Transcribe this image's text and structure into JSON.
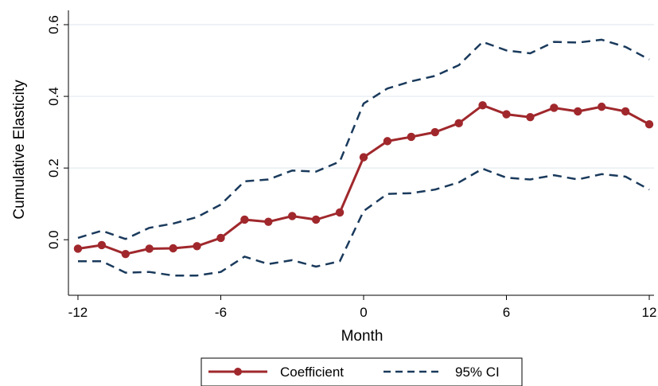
{
  "chart_data": {
    "type": "line",
    "title": "",
    "xlabel": "Month",
    "ylabel": "Cumulative Elasticity",
    "xlim": [
      -12.4,
      12.2
    ],
    "ylim": [
      -0.155,
      0.64
    ],
    "x_ticks": [
      -12,
      -6,
      0,
      6,
      12
    ],
    "x_tick_labels": [
      "-12",
      "-6",
      "0",
      "6",
      "12"
    ],
    "y_ticks": [
      0.0,
      0.2,
      0.4,
      0.6
    ],
    "y_tick_labels": [
      "0.0",
      "0.2",
      "0.4",
      "0.6"
    ],
    "grid": "horizontal",
    "legend_position": "bottom",
    "x": [
      -12,
      -11,
      -10,
      -9,
      -8,
      -7,
      -6,
      -5,
      -4,
      -3,
      -2,
      -1,
      0,
      1,
      2,
      3,
      4,
      5,
      6,
      7,
      8,
      9,
      10,
      11,
      12
    ],
    "series": [
      {
        "name": "Coefficient",
        "style": "solid-markers",
        "color": "#a0282c",
        "values": [
          -0.025,
          -0.015,
          -0.04,
          -0.025,
          -0.024,
          -0.018,
          0.005,
          0.056,
          0.05,
          0.066,
          0.056,
          0.076,
          0.23,
          0.275,
          0.287,
          0.3,
          0.325,
          0.375,
          0.35,
          0.342,
          0.368,
          0.358,
          0.371,
          0.358,
          0.322
        ]
      },
      {
        "name": "95% CI",
        "style": "dashed",
        "color": "#1a3a5c",
        "values": [
          0.005,
          0.025,
          0.002,
          0.033,
          0.045,
          0.063,
          0.098,
          0.163,
          0.168,
          0.193,
          0.19,
          0.218,
          0.38,
          0.422,
          0.442,
          0.457,
          0.487,
          0.552,
          0.528,
          0.52,
          0.552,
          0.55,
          0.558,
          0.538,
          0.503
        ]
      },
      {
        "name": "",
        "style": "dashed",
        "color": "#1a3a5c",
        "values": [
          -0.06,
          -0.06,
          -0.092,
          -0.09,
          -0.1,
          -0.1,
          -0.09,
          -0.047,
          -0.068,
          -0.057,
          -0.075,
          -0.06,
          0.08,
          0.128,
          0.13,
          0.14,
          0.16,
          0.198,
          0.173,
          0.168,
          0.18,
          0.168,
          0.183,
          0.176,
          0.14
        ]
      }
    ]
  }
}
